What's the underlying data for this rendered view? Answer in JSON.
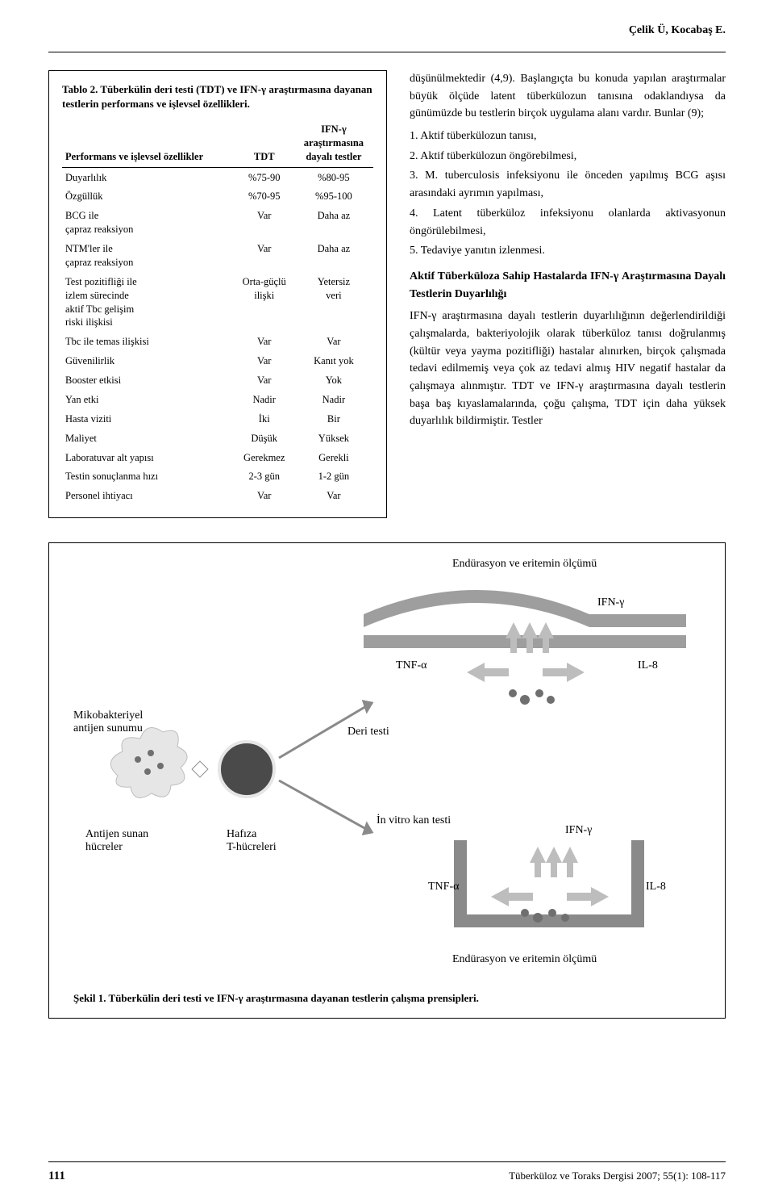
{
  "header": {
    "running": "Çelik Ü, Kocabaş E."
  },
  "table": {
    "title": "Tablo 2. Tüberkülin deri testi (TDT) ve IFN-γ araştırmasına dayanan testlerin performans ve işlevsel özellikleri.",
    "columns": {
      "c1": "Performans ve işlevsel özellikler",
      "c2": "TDT",
      "c3_line1": "IFN-γ",
      "c3_line2": "araştırmasına",
      "c3_line3": "dayalı testler"
    },
    "rows": [
      {
        "c1": "Duyarlılık",
        "c2": "%75-90",
        "c3": "%80-95"
      },
      {
        "c1": "Özgüllük",
        "c2": "%70-95",
        "c3": "%95-100"
      },
      {
        "c1": "BCG ile\nçapraz reaksiyon",
        "c2": "Var",
        "c3": "Daha az"
      },
      {
        "c1": "NTM'ler ile\nçapraz reaksiyon",
        "c2": "Var",
        "c3": "Daha az"
      },
      {
        "c1": "Test pozitifliği ile\nizlem sürecinde\naktif Tbc gelişim\nriski ilişkisi",
        "c2": "Orta-güçlü\nilişki",
        "c3": "Yetersiz\nveri"
      },
      {
        "c1": "Tbc ile temas ilişkisi",
        "c2": "Var",
        "c3": "Var"
      },
      {
        "c1": "Güvenilirlik",
        "c2": "Var",
        "c3": "Kanıt yok"
      },
      {
        "c1": "Booster etkisi",
        "c2": "Var",
        "c3": "Yok"
      },
      {
        "c1": "Yan etki",
        "c2": "Nadir",
        "c3": "Nadir"
      },
      {
        "c1": "Hasta viziti",
        "c2": "İki",
        "c3": "Bir"
      },
      {
        "c1": "Maliyet",
        "c2": "Düşük",
        "c3": "Yüksek"
      },
      {
        "c1": "Laboratuvar alt yapısı",
        "c2": "Gerekmez",
        "c3": "Gerekli"
      },
      {
        "c1": "Testin sonuçlanma hızı",
        "c2": "2-3 gün",
        "c3": "1-2 gün"
      },
      {
        "c1": "Personel ihtiyacı",
        "c2": "Var",
        "c3": "Var"
      }
    ]
  },
  "body": {
    "p1": "düşünülmektedir (4,9). Başlangıçta bu konuda yapılan araştırmalar büyük ölçüde latent tüberkülozun tanısına odaklandıysa da günümüzde bu testlerin birçok uygulama alanı vardır. Bunlar (9);",
    "list": [
      "1. Aktif tüberkülozun tanısı,",
      "2. Aktif tüberkülozun öngörebilmesi,",
      "3. M. tuberculosis infeksiyonu ile önceden yapılmış BCG aşısı arasındaki ayrımın yapılması,",
      "4. Latent tüberküloz infeksiyonu olanlarda aktivasyonun öngörülebilmesi,",
      "5. Tedaviye yanıtın izlenmesi."
    ],
    "subhead": "Aktif Tüberküloza Sahip Hastalarda IFN-γ Araştırmasına Dayalı Testlerin Duyarlılığı",
    "p2": "IFN-γ araştırmasına dayalı testlerin duyarlılığının değerlendirildiği çalışmalarda, bakteriyolojik olarak tüberküloz tanısı doğrulanmış (kültür veya yayma pozitifliği) hastalar alınırken, birçok çalışmada tedavi edilmemiş veya çok az tedavi almış HIV negatif hastalar da çalışmaya alınmıştır. TDT ve IFN-γ araştırmasına dayalı testlerin başa baş kıyaslamalarında, çoğu çalışma, TDT için daha yüksek duyarlılık bildirmiştir. Testler"
  },
  "figure": {
    "labels": {
      "top_measure": "Endürasyon ve eritemin ölçümü",
      "bottom_measure": "Endürasyon ve eritemin ölçümü",
      "ifng": "IFN-γ",
      "tnfa": "TNF-α",
      "il8": "IL-8",
      "myco": "Mikobakteriyel\nantijen sunumu",
      "deri": "Deri testi",
      "invitro": "İn vitro kan testi",
      "apc": "Antijen sunan\nhücreler",
      "mem": "Hafıza\nT-hücreleri"
    },
    "caption": "Şekil 1. Tüberkülin deri testi ve IFN-γ araştırmasına dayanan testlerin çalışma prensipleri.",
    "colors": {
      "gray_band": "#9e9e9e",
      "gray_arrow": "#bdbdbd",
      "cell_light": "#e6e6e6",
      "cell_dark": "#4a4a4a",
      "dot": "#6f6f6f",
      "well_stroke": "#8a8a8a"
    }
  },
  "footer": {
    "page": "111",
    "journal": "Tüberküloz ve Toraks Dergisi 2007; 55(1): 108-117"
  }
}
